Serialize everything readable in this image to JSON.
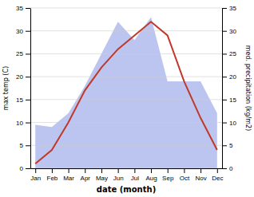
{
  "chart_data": {
    "type": "line",
    "xlabel": "date (month)",
    "ylabel": "max temp (C)",
    "y2label": "med. precipitation (kg/m2)",
    "categories": [
      "Jan",
      "Feb",
      "Mar",
      "Apr",
      "May",
      "Jun",
      "Jul",
      "Aug",
      "Sep",
      "Oct",
      "Nov",
      "Dec"
    ],
    "series": [
      {
        "type": "line",
        "color": "#c0392b",
        "values": [
          1,
          4,
          10,
          17,
          22,
          26,
          29,
          32,
          29,
          19,
          11,
          4
        ]
      },
      {
        "type": "area",
        "color": "#bcc5f0",
        "axis": "y2",
        "values": [
          9.5,
          9,
          12,
          18,
          25,
          32,
          28,
          33,
          19,
          19,
          19,
          12
        ]
      }
    ],
    "ylim": [
      0,
      35
    ],
    "yticks": [
      0,
      5,
      10,
      15,
      20,
      25,
      30,
      35
    ],
    "y2lim": [
      0,
      35
    ],
    "y2ticks": [
      0,
      5,
      10,
      15,
      20,
      25,
      30,
      35
    ],
    "grid": true
  }
}
